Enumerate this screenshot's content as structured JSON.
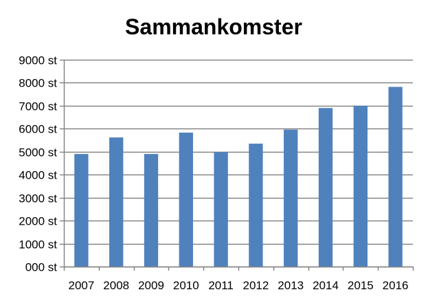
{
  "chart_data": {
    "type": "bar",
    "title": "Sammankomster",
    "xlabel": "",
    "ylabel": "",
    "categories": [
      "2007",
      "2008",
      "2009",
      "2010",
      "2011",
      "2012",
      "2013",
      "2014",
      "2015",
      "2016"
    ],
    "values": [
      4900,
      5620,
      4900,
      5830,
      4980,
      5350,
      5960,
      6900,
      7000,
      7820
    ],
    "ylim": [
      0,
      9000
    ],
    "yticks": [
      0,
      1000,
      2000,
      3000,
      4000,
      5000,
      6000,
      7000,
      8000,
      9000
    ],
    "ytick_labels": [
      "000 st",
      "1000 st",
      "2000 st",
      "3000 st",
      "4000 st",
      "5000 st",
      "6000 st",
      "7000 st",
      "8000 st",
      "9000 st"
    ],
    "grid": true,
    "legend": "none",
    "colors": {
      "bar": "#4F81BD",
      "grid": "#868686",
      "axis": "#868686"
    }
  }
}
